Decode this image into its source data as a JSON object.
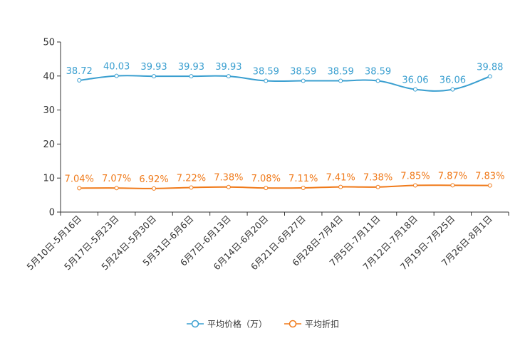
{
  "chart_data": {
    "type": "line",
    "categories": [
      "5月10日-5月16日",
      "5月17日-5月23日",
      "5月24日-5月30日",
      "5月31日-6月6日",
      "6月7日-6月13日",
      "6月14日-6月20日",
      "6月21日-6月27日",
      "6月28日-7月4日",
      "7月5日-7月11日",
      "7月12日-7月18日",
      "7月19日-7月25日",
      "7月26日-8月1日"
    ],
    "ylim": [
      0,
      50
    ],
    "yticks": [
      0,
      10,
      20,
      30,
      40,
      50
    ],
    "series": [
      {
        "name": "平均价格（万）",
        "color": "#3a9fd0",
        "values": [
          38.72,
          40.03,
          39.93,
          39.93,
          39.93,
          38.59,
          38.59,
          38.59,
          38.59,
          36.06,
          36.06,
          39.88
        ],
        "labels": [
          "38.72",
          "40.03",
          "39.93",
          "39.93",
          "39.93",
          "38.59",
          "38.59",
          "38.59",
          "38.59",
          "36.06",
          "36.06",
          "39.88"
        ]
      },
      {
        "name": "平均折扣",
        "color": "#f07a1a",
        "values": [
          7.04,
          7.07,
          6.92,
          7.22,
          7.38,
          7.08,
          7.11,
          7.41,
          7.38,
          7.85,
          7.87,
          7.83
        ],
        "labels": [
          "7.04%",
          "7.07%",
          "6.92%",
          "7.22%",
          "7.38%",
          "7.08%",
          "7.11%",
          "7.41%",
          "7.38%",
          "7.85%",
          "7.87%",
          "7.83%"
        ]
      }
    ],
    "legend_position": "bottom-center"
  }
}
